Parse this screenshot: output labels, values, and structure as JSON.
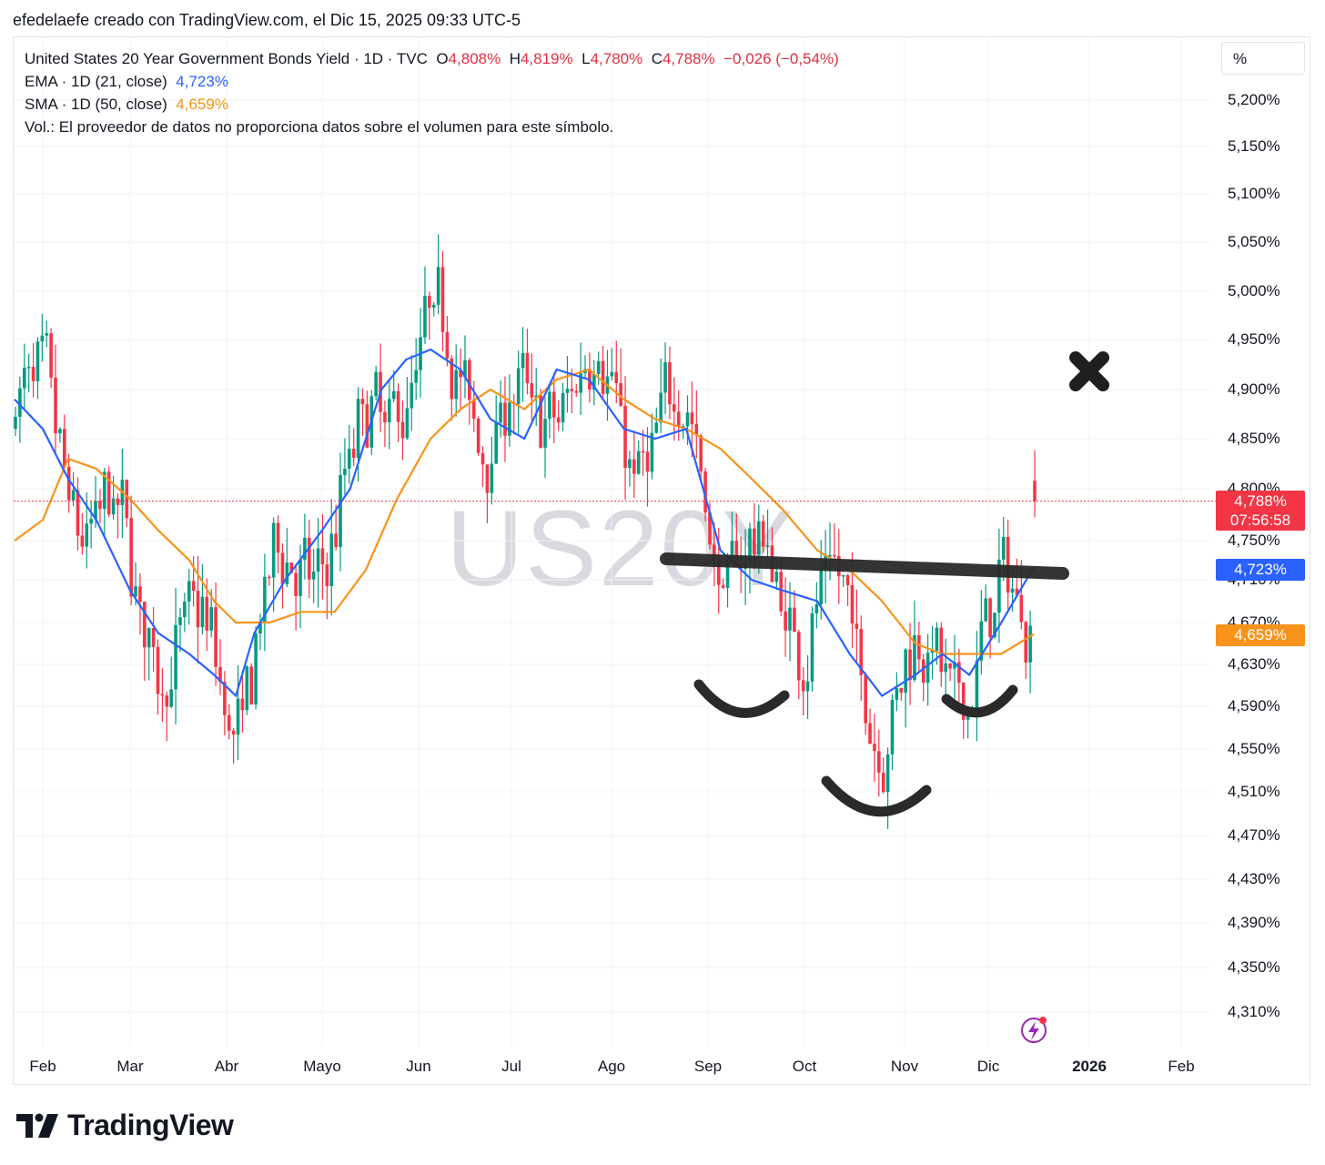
{
  "page_title": "efedelaefe creado con TradingView.com, el Dic 15, 2025 09:33 UTC-5",
  "legend": {
    "symbol_line": "United States 20 Year Government Bonds Yield · 1D · TVC",
    "o_key": "O",
    "o_val": "4,808%",
    "h_key": "H",
    "h_val": "4,819%",
    "l_key": "L",
    "l_val": "4,780%",
    "c_key": "C",
    "c_val": "4,788%",
    "change": "−0,026 (−0,54%)",
    "ema_label": "EMA · 1D (21, close)",
    "ema_val": "4,723%",
    "sma_label": "SMA · 1D (50, close)",
    "sma_val": "4,659%",
    "vol_note": "Vol.: El proveedor de datos no proporciona datos sobre el volumen para este símbolo."
  },
  "axis_unit_button": "%",
  "watermark": "US20Y",
  "price_tags": {
    "last_price": "4,788%",
    "countdown": "07:56:58",
    "ema": "4,723%",
    "sma": "4,659%"
  },
  "brand": "TradingView",
  "colors": {
    "up": "#089981",
    "down": "#f23645",
    "ema": "#2962ff",
    "sma": "#f7931a",
    "drawing": "#2a2a2a"
  },
  "chart_data": {
    "type": "candlestick",
    "title": "United States 20 Year Government Bonds Yield",
    "y_tick_labels": [
      "5,200%",
      "5,150%",
      "5,100%",
      "5,050%",
      "5,000%",
      "4,950%",
      "4,900%",
      "4,850%",
      "4,800%",
      "4,750%",
      "4,710%",
      "4,670%",
      "4,630%",
      "4,590%",
      "4,550%",
      "4,510%",
      "4,470%",
      "4,430%",
      "4,390%",
      "4,350%",
      "4,310%"
    ],
    "x_tick_labels": [
      "Feb",
      "Mar",
      "Abr",
      "Mayo",
      "Jun",
      "Jul",
      "Ago",
      "Sep",
      "Oct",
      "Nov",
      "Dic",
      "2026",
      "Feb"
    ],
    "x_bold_ticks": [
      "2026"
    ],
    "ylim": [
      4.29,
      5.21
    ],
    "last": {
      "open": 4.808,
      "high": 4.819,
      "low": 4.78,
      "close": 4.788
    },
    "ema_last": 4.723,
    "sma_last": 4.659,
    "ema_series": [
      [
        "Jan 22",
        4.89
      ],
      [
        "Feb 1",
        4.86
      ],
      [
        "Feb 10",
        4.81
      ],
      [
        "Feb 20",
        4.77
      ],
      [
        "Mar 1",
        4.7
      ],
      [
        "Mar 10",
        4.66
      ],
      [
        "Mar 20",
        4.64
      ],
      [
        "Mar 28",
        4.62
      ],
      [
        "Apr 4",
        4.6
      ],
      [
        "Apr 10",
        4.66
      ],
      [
        "Apr 20",
        4.71
      ],
      [
        "May 1",
        4.76
      ],
      [
        "May 10",
        4.8
      ],
      [
        "May 20",
        4.9
      ],
      [
        "May 28",
        4.93
      ],
      [
        "Jun 5",
        4.94
      ],
      [
        "Jun 15",
        4.92
      ],
      [
        "Jun 25",
        4.87
      ],
      [
        "Jul 5",
        4.85
      ],
      [
        "Jul 15",
        4.92
      ],
      [
        "Jul 25",
        4.91
      ],
      [
        "Aug 5",
        4.86
      ],
      [
        "Aug 15",
        4.85
      ],
      [
        "Aug 25",
        4.86
      ],
      [
        "Sep 5",
        4.74
      ],
      [
        "Sep 15",
        4.71
      ],
      [
        "Sep 25",
        4.7
      ],
      [
        "Oct 5",
        4.69
      ],
      [
        "Oct 15",
        4.64
      ],
      [
        "Oct 25",
        4.6
      ],
      [
        "Nov 5",
        4.62
      ],
      [
        "Nov 15",
        4.64
      ],
      [
        "Nov 25",
        4.62
      ],
      [
        "Dec 5",
        4.67
      ],
      [
        "Dec 15",
        4.723
      ]
    ],
    "sma_series": [
      [
        "Jan 22",
        4.75
      ],
      [
        "Feb 1",
        4.77
      ],
      [
        "Feb 10",
        4.83
      ],
      [
        "Feb 20",
        4.82
      ],
      [
        "Mar 1",
        4.79
      ],
      [
        "Mar 10",
        4.76
      ],
      [
        "Mar 20",
        4.73
      ],
      [
        "Mar 28",
        4.69
      ],
      [
        "Apr 4",
        4.67
      ],
      [
        "Apr 15",
        4.67
      ],
      [
        "Apr 25",
        4.68
      ],
      [
        "May 5",
        4.68
      ],
      [
        "May 15",
        4.72
      ],
      [
        "May 25",
        4.79
      ],
      [
        "Jun 5",
        4.85
      ],
      [
        "Jun 15",
        4.88
      ],
      [
        "Jun 25",
        4.9
      ],
      [
        "Jul 5",
        4.88
      ],
      [
        "Jul 15",
        4.91
      ],
      [
        "Jul 25",
        4.92
      ],
      [
        "Aug 5",
        4.89
      ],
      [
        "Aug 15",
        4.87
      ],
      [
        "Aug 25",
        4.86
      ],
      [
        "Sep 5",
        4.84
      ],
      [
        "Sep 15",
        4.81
      ],
      [
        "Sep 25",
        4.78
      ],
      [
        "Oct 5",
        4.74
      ],
      [
        "Oct 15",
        4.72
      ],
      [
        "Oct 25",
        4.69
      ],
      [
        "Nov 5",
        4.65
      ],
      [
        "Nov 15",
        4.64
      ],
      [
        "Nov 25",
        4.64
      ],
      [
        "Dec 5",
        4.64
      ],
      [
        "Dec 15",
        4.659
      ]
    ],
    "price_range_drawn": {
      "low": 4.355,
      "high": 5.165
    },
    "annotations": [
      "neckline",
      "left-shoulder",
      "head",
      "right-shoulder",
      "cross-mark"
    ]
  }
}
